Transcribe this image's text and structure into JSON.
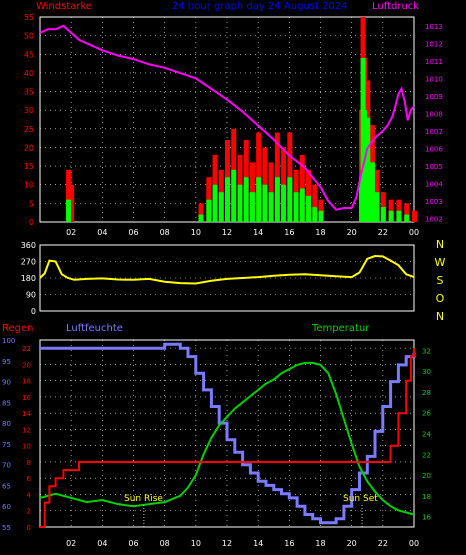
{
  "colors": {
    "background": "#000000",
    "axis": "#FFFFFF",
    "grid": "#FFFFFF",
    "wind_gust": "#FF0000",
    "wind_speed": "#00FF00",
    "pressure": "#FF00FF",
    "direction": "#FFFF00",
    "rain": "#FF0000",
    "humidity": "#7B7BFF",
    "temperature": "#00D000",
    "title": "#0000FF",
    "sun_label": "#FFFF00"
  },
  "charts": {
    "wind": {
      "title": "24 hour graph day  24 August 2024",
      "left_label": "Windstarke",
      "right_label": "Luftdruck"
    },
    "direction": {
      "compass_labels": [
        "N",
        "W",
        "S",
        "O",
        "N"
      ]
    },
    "climate": {
      "left_label": "Regen",
      "humidity_label": "Luftfeuchte",
      "temperature_label": "Temperatur",
      "sun_rise_label": "Sun Rise",
      "sun_set_label": "Sun Set"
    }
  },
  "chart_data": [
    {
      "type": "bar",
      "title": "24 hour graph day  24 August 2024",
      "ylabel": "Windstarke",
      "x_tick_labels": [
        "02",
        "04",
        "06",
        "08",
        "10",
        "12",
        "14",
        "16",
        "18",
        "20",
        "22",
        "00"
      ],
      "x_range_hours": [
        0,
        24
      ],
      "ylim": [
        0,
        55
      ],
      "y_ticks": [
        0,
        5,
        10,
        15,
        20,
        25,
        30,
        35,
        40,
        45,
        50,
        55
      ],
      "series": [
        {
          "name": "gust",
          "points": [
            [
              1.8,
              14
            ],
            [
              2,
              10
            ],
            [
              10.3,
              5
            ],
            [
              10.8,
              12
            ],
            [
              11.2,
              18
            ],
            [
              11.6,
              14
            ],
            [
              12,
              22
            ],
            [
              12.4,
              25
            ],
            [
              12.8,
              18
            ],
            [
              13.2,
              22
            ],
            [
              13.6,
              16
            ],
            [
              14,
              24
            ],
            [
              14.4,
              20
            ],
            [
              14.8,
              16
            ],
            [
              15.2,
              24
            ],
            [
              15.6,
              20
            ],
            [
              16,
              24
            ],
            [
              16.4,
              14
            ],
            [
              16.8,
              18
            ],
            [
              17.2,
              14
            ],
            [
              17.6,
              10
            ],
            [
              18,
              6
            ],
            [
              20.6,
              30
            ],
            [
              20.7,
              55
            ],
            [
              20.8,
              44
            ],
            [
              21,
              38
            ],
            [
              21.3,
              26
            ],
            [
              21.6,
              14
            ],
            [
              22,
              8
            ],
            [
              22.5,
              6
            ],
            [
              23,
              6
            ],
            [
              23.5,
              5
            ],
            [
              24,
              3
            ]
          ]
        },
        {
          "name": "speed",
          "points": [
            [
              1.8,
              6
            ],
            [
              10.3,
              2
            ],
            [
              10.8,
              6
            ],
            [
              11.2,
              10
            ],
            [
              11.6,
              8
            ],
            [
              12,
              12
            ],
            [
              12.4,
              14
            ],
            [
              12.8,
              10
            ],
            [
              13.2,
              12
            ],
            [
              13.6,
              8
            ],
            [
              14,
              12
            ],
            [
              14.4,
              10
            ],
            [
              14.8,
              8
            ],
            [
              15.2,
              12
            ],
            [
              15.6,
              10
            ],
            [
              16,
              12
            ],
            [
              16.4,
              8
            ],
            [
              16.8,
              9
            ],
            [
              17.2,
              7
            ],
            [
              17.6,
              4
            ],
            [
              18,
              3
            ],
            [
              20.6,
              12
            ],
            [
              20.7,
              44
            ],
            [
              20.8,
              30
            ],
            [
              21,
              28
            ],
            [
              21.3,
              16
            ],
            [
              21.6,
              8
            ],
            [
              22,
              4
            ],
            [
              22.5,
              3
            ],
            [
              23,
              3
            ],
            [
              23.5,
              2
            ]
          ]
        }
      ]
    },
    {
      "type": "line",
      "series_name": "Luftdruck",
      "y2_ticks": [
        1002,
        1003,
        1004,
        1005,
        1006,
        1007,
        1008,
        1009,
        1010,
        1011,
        1012,
        1013
      ],
      "y2lim": [
        1001.8,
        1013.5
      ],
      "x": [
        0,
        0.5,
        1,
        1.5,
        2,
        2.5,
        3,
        4,
        5,
        6,
        7,
        8,
        9,
        10,
        11,
        12,
        13,
        14,
        15,
        16,
        17,
        18,
        18.5,
        19,
        19.5,
        20,
        20.3,
        20.6,
        21,
        21.5,
        22,
        22.3,
        22.6,
        22.8,
        23,
        23.2,
        23.4,
        23.6,
        23.8,
        24
      ],
      "y": [
        1012.6,
        1012.8,
        1012.8,
        1013.0,
        1012.6,
        1012.2,
        1012.0,
        1011.6,
        1011.3,
        1011.1,
        1010.8,
        1010.6,
        1010.3,
        1010.0,
        1009.4,
        1008.8,
        1008.1,
        1007.3,
        1006.5,
        1005.6,
        1004.9,
        1003.8,
        1003.0,
        1002.5,
        1002.6,
        1002.6,
        1003.2,
        1004.5,
        1006.0,
        1006.6,
        1007.0,
        1007.3,
        1007.8,
        1008.4,
        1009.1,
        1009.4,
        1008.7,
        1007.6,
        1008.2,
        1008.4
      ]
    },
    {
      "type": "line",
      "series_name": "direction",
      "y_ticks": [
        0,
        90,
        180,
        270,
        360
      ],
      "ylim": [
        0,
        360
      ],
      "x": [
        0,
        0.3,
        0.6,
        1,
        1.4,
        1.8,
        2.2,
        3,
        4,
        5,
        6,
        7,
        8,
        9,
        10,
        11,
        12,
        13,
        14,
        15,
        16,
        17,
        18,
        19,
        20,
        20.5,
        21,
        21.5,
        22,
        22.5,
        23,
        23.5,
        24
      ],
      "y": [
        180,
        205,
        275,
        270,
        200,
        180,
        170,
        175,
        178,
        172,
        170,
        175,
        160,
        152,
        150,
        165,
        175,
        180,
        185,
        192,
        198,
        200,
        195,
        190,
        185,
        210,
        285,
        300,
        298,
        275,
        250,
        200,
        185
      ]
    },
    {
      "type": "line",
      "title": "",
      "x_tick_labels": [
        "02",
        "04",
        "06",
        "08",
        "10",
        "12",
        "14",
        "16",
        "18",
        "20",
        "22",
        "00"
      ],
      "humidity": {
        "name": "Luftfeuchte",
        "ylim": [
          55,
          100
        ],
        "y_ticks": [
          55,
          60,
          65,
          70,
          75,
          80,
          85,
          90,
          95,
          100
        ],
        "x": [
          0,
          1,
          2,
          3,
          4,
          5,
          6,
          7,
          8,
          9,
          9.5,
          10,
          10.5,
          11,
          11.5,
          12,
          12.5,
          13,
          13.5,
          14,
          14.5,
          15,
          15.5,
          16,
          16.5,
          17,
          17.5,
          18,
          18.5,
          19,
          19.5,
          20,
          20.5,
          21,
          21.5,
          22,
          22.5,
          23,
          23.5,
          24
        ],
        "y": [
          98,
          98,
          98,
          98,
          98,
          98,
          98,
          98,
          99,
          98,
          96,
          92,
          88,
          84,
          80,
          76,
          73,
          70,
          68,
          66,
          65,
          64,
          63,
          62,
          60,
          58,
          57,
          56,
          56,
          57,
          60,
          64,
          68,
          72,
          78,
          84,
          90,
          94,
          96,
          97
        ]
      },
      "temperature": {
        "name": "Temperatur",
        "ylim": [
          15,
          33
        ],
        "y_ticks": [
          16,
          18,
          20,
          22,
          24,
          26,
          28,
          30,
          32
        ],
        "x": [
          0,
          1,
          2,
          3,
          4,
          5,
          6,
          7,
          8,
          9,
          9.5,
          10,
          10.5,
          11,
          11.5,
          12,
          12.5,
          13,
          13.5,
          14,
          14.5,
          15,
          15.5,
          16,
          16.5,
          17,
          17.5,
          18,
          18.5,
          19,
          19.5,
          20,
          20.5,
          21,
          21.5,
          22,
          22.5,
          23,
          23.5,
          24
        ],
        "y": [
          17.8,
          18.2,
          17.8,
          17.4,
          17.6,
          17.2,
          17.0,
          17.2,
          17.4,
          18.0,
          18.8,
          20.0,
          22.0,
          23.6,
          24.8,
          25.6,
          26.4,
          27.0,
          27.6,
          28.2,
          28.8,
          29.2,
          29.8,
          30.2,
          30.6,
          30.8,
          30.8,
          30.6,
          29.8,
          27.8,
          25.4,
          23.0,
          20.8,
          19.4,
          18.4,
          17.6,
          17.0,
          16.6,
          16.4,
          16.2
        ]
      },
      "rain": {
        "name": "Regen",
        "ylim": [
          0,
          23
        ],
        "y_ticks": [
          0,
          2,
          4,
          6,
          8,
          10,
          12,
          14,
          16,
          18,
          20,
          22
        ],
        "x": [
          0,
          0.3,
          0.6,
          1,
          1.5,
          2,
          2.5,
          10,
          20,
          22,
          22.5,
          23,
          23.5,
          23.8,
          24
        ],
        "y": [
          0,
          3,
          5,
          6,
          7,
          7,
          8,
          8,
          8,
          8,
          10,
          14,
          18,
          21,
          22
        ]
      },
      "sun_rise": "06:40",
      "sun_set": "20:40"
    }
  ]
}
